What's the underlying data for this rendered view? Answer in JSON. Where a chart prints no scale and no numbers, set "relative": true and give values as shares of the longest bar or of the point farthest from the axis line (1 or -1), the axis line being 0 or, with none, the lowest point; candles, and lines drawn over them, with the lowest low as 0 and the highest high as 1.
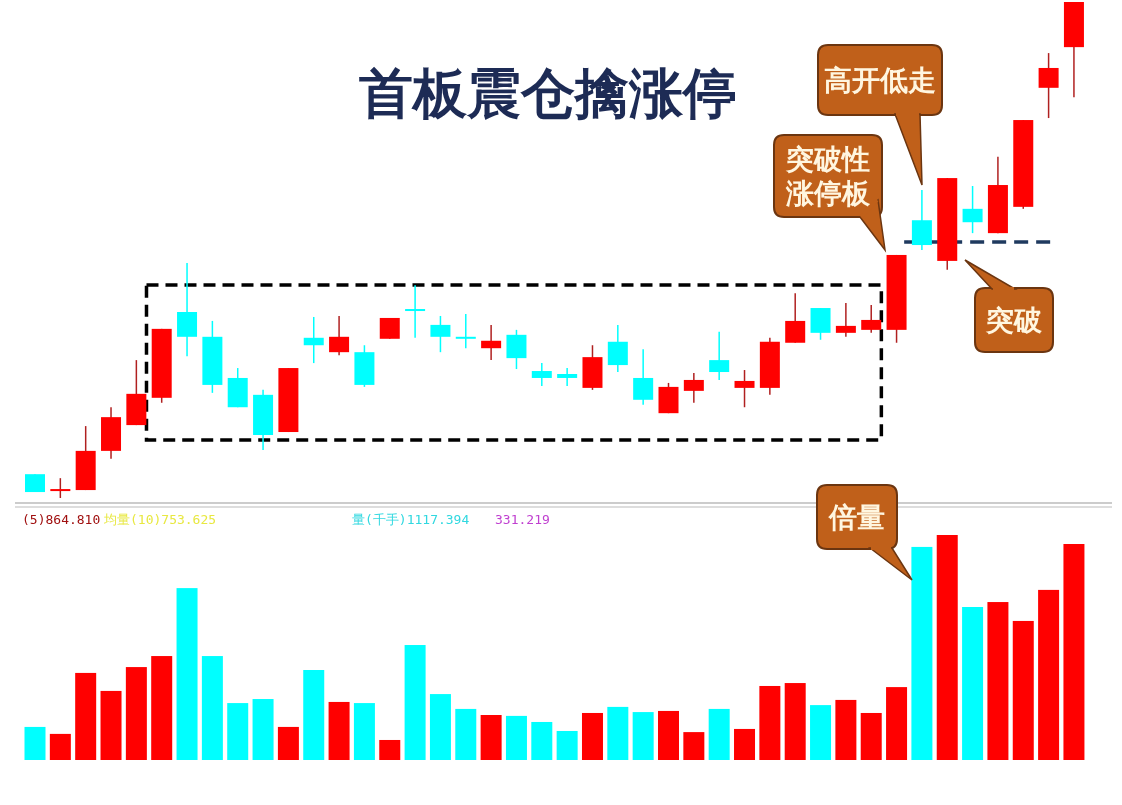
{
  "chart_data": [
    {
      "type": "candlestick",
      "relative": true,
      "title": "首板震仓擒涨停",
      "categories": [
        null,
        null,
        null,
        null,
        null,
        null,
        null,
        null,
        null,
        null,
        null,
        null,
        null,
        null,
        null,
        null,
        null,
        null,
        null,
        null,
        null,
        null,
        null,
        null,
        null,
        null,
        null,
        null,
        null,
        null,
        null,
        null,
        null,
        null,
        null,
        null,
        null,
        null,
        null,
        null,
        null,
        null
      ],
      "ohlc": [
        [
          0.048,
          0.048,
          0.012,
          0.012
        ],
        [
          0.016,
          0.04,
          0.0,
          0.018
        ],
        [
          0.016,
          0.145,
          0.016,
          0.095
        ],
        [
          0.095,
          0.183,
          0.079,
          0.163
        ],
        [
          0.147,
          0.278,
          0.147,
          0.21
        ],
        [
          0.202,
          0.341,
          0.192,
          0.341
        ],
        [
          0.375,
          0.474,
          0.286,
          0.325
        ],
        [
          0.325,
          0.357,
          0.212,
          0.228
        ],
        [
          0.242,
          0.262,
          0.183,
          0.183
        ],
        [
          0.208,
          0.218,
          0.097,
          0.127
        ],
        [
          0.133,
          0.262,
          0.133,
          0.262
        ],
        [
          0.323,
          0.365,
          0.272,
          0.308
        ],
        [
          0.294,
          0.367,
          0.288,
          0.325
        ],
        [
          0.294,
          0.308,
          0.224,
          0.228
        ],
        [
          0.321,
          0.363,
          0.321,
          0.363
        ],
        [
          0.381,
          0.429,
          0.323,
          0.379
        ],
        [
          0.349,
          0.367,
          0.294,
          0.325
        ],
        [
          0.325,
          0.371,
          0.302,
          0.323
        ],
        [
          0.302,
          0.349,
          0.278,
          0.317
        ],
        [
          0.329,
          0.339,
          0.26,
          0.282
        ],
        [
          0.256,
          0.272,
          0.226,
          0.242
        ],
        [
          0.25,
          0.262,
          0.226,
          0.242
        ],
        [
          0.222,
          0.308,
          0.218,
          0.284
        ],
        [
          0.315,
          0.349,
          0.254,
          0.268
        ],
        [
          0.242,
          0.3,
          0.188,
          0.198
        ],
        [
          0.171,
          0.232,
          0.171,
          0.224
        ],
        [
          0.216,
          0.252,
          0.192,
          0.238
        ],
        [
          0.278,
          0.335,
          0.238,
          0.254
        ],
        [
          0.222,
          0.258,
          0.183,
          0.236
        ],
        [
          0.222,
          0.323,
          0.208,
          0.315
        ],
        [
          0.313,
          0.413,
          0.313,
          0.357
        ],
        [
          0.383,
          0.383,
          0.319,
          0.333
        ],
        [
          0.333,
          0.393,
          0.325,
          0.347
        ],
        [
          0.339,
          0.389,
          0.333,
          0.359
        ],
        [
          0.339,
          0.49,
          0.313,
          0.49
        ],
        [
          0.56,
          0.621,
          0.5,
          0.51
        ],
        [
          0.478,
          0.645,
          0.46,
          0.645
        ],
        [
          0.583,
          0.629,
          0.534,
          0.556
        ],
        [
          0.534,
          0.688,
          0.534,
          0.631
        ],
        [
          0.587,
          0.762,
          0.583,
          0.762
        ],
        [
          0.827,
          0.897,
          0.766,
          0.867
        ],
        [
          0.909,
          1.0,
          0.808,
          1.0
        ]
      ],
      "colors": [
        "#00ffff",
        "#ff0000",
        "#ff0000",
        "#ff0000",
        "#ff0000",
        "#ff0000",
        "#00ffff",
        "#00ffff",
        "#00ffff",
        "#00ffff",
        "#ff0000",
        "#00ffff",
        "#ff0000",
        "#00ffff",
        "#ff0000",
        "#00ffff",
        "#00ffff",
        "#00ffff",
        "#ff0000",
        "#00ffff",
        "#00ffff",
        "#00ffff",
        "#ff0000",
        "#00ffff",
        "#00ffff",
        "#ff0000",
        "#ff0000",
        "#00ffff",
        "#ff0000",
        "#ff0000",
        "#ff0000",
        "#00ffff",
        "#ff0000",
        "#ff0000",
        "#ff0000",
        "#00ffff",
        "#ff0000",
        "#00ffff",
        "#ff0000",
        "#ff0000",
        "#ff0000",
        "#ff0000"
      ],
      "ref_lines": [
        {
          "axis": "y",
          "value": 0.516,
          "color": "#1f3a5f",
          "line_style": "dashed"
        }
      ],
      "annotations": [
        "突破性涨停板",
        "高开低走",
        "突破"
      ]
    },
    {
      "type": "bar",
      "relative": true,
      "categories": [
        null,
        null,
        null,
        null,
        null,
        null,
        null,
        null,
        null,
        null,
        null,
        null,
        null,
        null,
        null,
        null,
        null,
        null,
        null,
        null,
        null,
        null,
        null,
        null,
        null,
        null,
        null,
        null,
        null,
        null,
        null,
        null,
        null,
        null,
        null,
        null,
        null,
        null,
        null,
        null,
        null,
        null
      ],
      "values": [
        0.147,
        0.116,
        0.387,
        0.307,
        0.413,
        0.462,
        0.764,
        0.462,
        0.253,
        0.271,
        0.147,
        0.4,
        0.258,
        0.253,
        0.089,
        0.511,
        0.293,
        0.227,
        0.2,
        0.196,
        0.169,
        0.129,
        0.209,
        0.236,
        0.213,
        0.218,
        0.124,
        0.227,
        0.138,
        0.329,
        0.342,
        0.244,
        0.267,
        0.209,
        0.324,
        0.947,
        1,
        0.68,
        0.702,
        0.618,
        0.756,
        0.96
      ],
      "colors": [
        "#00ffff",
        "#ff0000",
        "#ff0000",
        "#ff0000",
        "#ff0000",
        "#ff0000",
        "#00ffff",
        "#00ffff",
        "#00ffff",
        "#00ffff",
        "#ff0000",
        "#00ffff",
        "#ff0000",
        "#00ffff",
        "#ff0000",
        "#00ffff",
        "#00ffff",
        "#00ffff",
        "#ff0000",
        "#00ffff",
        "#00ffff",
        "#00ffff",
        "#ff0000",
        "#00ffff",
        "#00ffff",
        "#ff0000",
        "#ff0000",
        "#00ffff",
        "#ff0000",
        "#ff0000",
        "#ff0000",
        "#00ffff",
        "#ff0000",
        "#ff0000",
        "#ff0000",
        "#00ffff",
        "#ff0000",
        "#00ffff",
        "#ff0000",
        "#ff0000",
        "#ff0000",
        "#ff0000"
      ],
      "annotations": [
        "(5)864.810",
        "均量(10)753.625",
        "量(千手)1117.394",
        "331.219",
        "倍量"
      ]
    }
  ]
}
